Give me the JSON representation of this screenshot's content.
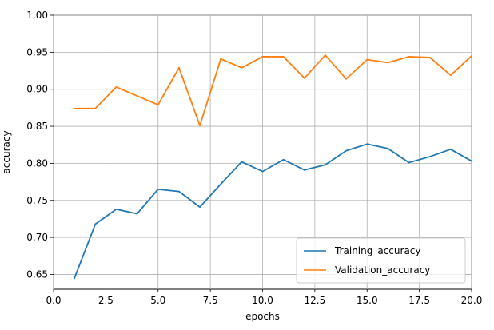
{
  "chart_data": {
    "type": "line",
    "title": "",
    "xlabel": "epochs",
    "ylabel": "accuracy",
    "xlim": [
      0.0,
      20.0
    ],
    "ylim": [
      0.63,
      1.0
    ],
    "xticks": [
      0.0,
      2.5,
      5.0,
      7.5,
      10.0,
      12.5,
      15.0,
      17.5,
      20.0
    ],
    "xtick_labels": [
      "0.0",
      "2.5",
      "5.0",
      "7.5",
      "10.0",
      "12.5",
      "15.0",
      "17.5",
      "20.0"
    ],
    "yticks": [
      0.65,
      0.7,
      0.75,
      0.8,
      0.85,
      0.9,
      0.95,
      1.0
    ],
    "ytick_labels": [
      "0.65",
      "0.70",
      "0.75",
      "0.80",
      "0.85",
      "0.90",
      "0.95",
      "1.00"
    ],
    "grid": true,
    "legend_position": "lower-right",
    "x": [
      1,
      2,
      3,
      4,
      5,
      6,
      7,
      8,
      9,
      10,
      11,
      12,
      13,
      14,
      15,
      16,
      17,
      18,
      19,
      20
    ],
    "series": [
      {
        "name": "Training_accuracy",
        "color": "#1f77b4",
        "values": [
          0.645,
          0.718,
          0.738,
          0.732,
          0.765,
          0.762,
          0.741,
          0.772,
          0.802,
          0.789,
          0.805,
          0.791,
          0.798,
          0.817,
          0.826,
          0.82,
          0.801,
          0.809,
          0.819,
          0.803
        ]
      },
      {
        "name": "Validation_accuracy",
        "color": "#ff7f0e",
        "values": [
          0.874,
          0.874,
          0.903,
          0.891,
          0.879,
          0.929,
          0.851,
          0.941,
          0.929,
          0.944,
          0.944,
          0.915,
          0.946,
          0.914,
          0.94,
          0.936,
          0.944,
          0.943,
          0.919,
          0.945
        ]
      }
    ]
  }
}
